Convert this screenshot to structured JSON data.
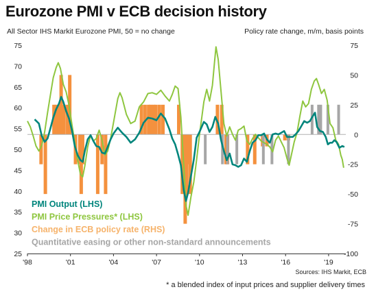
{
  "title": "Eurozone PMI v ECB decision history",
  "subtitle_left": "All Sector IHS Markit Eurozone PMI, 50 = no change",
  "subtitle_right": "Policy rate change, m/m, basis points",
  "source": "Sources: IHS Markit, ECB",
  "footnote": "* a blended index of input prices and supplier delivery times",
  "colors": {
    "pmi_output": "#00857c",
    "pmi_prices": "#8ec63f",
    "rate_change": "#f4913e",
    "qe": "#a6a6a6",
    "legend_rate": "#f6b36b"
  },
  "chart_data": {
    "type": "line",
    "left_axis": {
      "ticks": [
        25,
        30,
        35,
        40,
        45,
        50,
        55,
        60,
        65,
        70,
        75
      ],
      "ylim": [
        25,
        75
      ]
    },
    "right_axis": {
      "ticks": [
        -100,
        -75,
        -50,
        -25,
        0,
        25,
        50,
        75
      ],
      "ylim": [
        -100,
        75
      ]
    },
    "x_axis": {
      "ticks": [
        "'98",
        "'01",
        "'04",
        "'07",
        "'10",
        "'13",
        "'16",
        "'19"
      ],
      "tick_years": [
        1998,
        2001,
        2004,
        2007,
        2010,
        2013,
        2016,
        2019
      ],
      "xlim": [
        1998,
        2020.2
      ]
    },
    "legend": [
      {
        "label": "PMI  Output (LHS)",
        "series": "pmi_output"
      },
      {
        "label": "PMI Price Pressures* (LHS)",
        "series": "pmi_prices"
      },
      {
        "label": "Change in ECB policy rate (RHS)",
        "series": "rate_change"
      },
      {
        "label": "Quantitative easing or other non-standard announcements",
        "series": "qe"
      }
    ],
    "series": [
      {
        "name": "PMI  Output (LHS)",
        "axis": "left",
        "color": "#00857c",
        "points": [
          [
            1998.5,
            57.2
          ],
          [
            1998.8,
            56.2
          ],
          [
            1999.0,
            53.2
          ],
          [
            1999.2,
            51.8
          ],
          [
            1999.4,
            52.6
          ],
          [
            1999.6,
            55.0
          ],
          [
            1999.8,
            57.6
          ],
          [
            2000.0,
            59.6
          ],
          [
            2000.2,
            61.0
          ],
          [
            2000.35,
            62.6
          ],
          [
            2000.5,
            61.4
          ],
          [
            2000.7,
            59.2
          ],
          [
            2000.9,
            57.4
          ],
          [
            2001.1,
            54.6
          ],
          [
            2001.3,
            50.8
          ],
          [
            2001.5,
            48.6
          ],
          [
            2001.7,
            47.4
          ],
          [
            2001.85,
            47.0
          ],
          [
            2002.0,
            49.6
          ],
          [
            2002.2,
            52.4
          ],
          [
            2002.4,
            53.4
          ],
          [
            2002.6,
            52.0
          ],
          [
            2002.8,
            50.8
          ],
          [
            2003.0,
            50.6
          ],
          [
            2003.2,
            49.2
          ],
          [
            2003.4,
            49.0
          ],
          [
            2003.6,
            50.6
          ],
          [
            2003.8,
            52.4
          ],
          [
            2004.0,
            53.8
          ],
          [
            2004.3,
            55.2
          ],
          [
            2004.6,
            54.0
          ],
          [
            2004.9,
            53.0
          ],
          [
            2005.2,
            51.6
          ],
          [
            2005.5,
            52.4
          ],
          [
            2005.8,
            54.0
          ],
          [
            2006.1,
            56.4
          ],
          [
            2006.4,
            57.6
          ],
          [
            2006.7,
            57.4
          ],
          [
            2007.0,
            57.0
          ],
          [
            2007.3,
            58.6
          ],
          [
            2007.6,
            57.4
          ],
          [
            2007.9,
            54.8
          ],
          [
            2008.1,
            52.6
          ],
          [
            2008.3,
            51.2
          ],
          [
            2008.5,
            48.8
          ],
          [
            2008.7,
            46.2
          ],
          [
            2008.9,
            40.2
          ],
          [
            2009.05,
            37.6
          ],
          [
            2009.2,
            39.6
          ],
          [
            2009.4,
            43.6
          ],
          [
            2009.6,
            47.6
          ],
          [
            2009.8,
            52.8
          ],
          [
            2010.0,
            54.2
          ],
          [
            2010.3,
            56.6
          ],
          [
            2010.5,
            56.0
          ],
          [
            2010.7,
            54.2
          ],
          [
            2010.9,
            55.4
          ],
          [
            2011.1,
            57.8
          ],
          [
            2011.3,
            56.2
          ],
          [
            2011.5,
            52.2
          ],
          [
            2011.7,
            49.6
          ],
          [
            2011.9,
            47.4
          ],
          [
            2012.1,
            49.0
          ],
          [
            2012.3,
            46.4
          ],
          [
            2012.5,
            46.2
          ],
          [
            2012.7,
            45.8
          ],
          [
            2012.9,
            46.2
          ],
          [
            2013.1,
            47.8
          ],
          [
            2013.3,
            47.0
          ],
          [
            2013.5,
            49.6
          ],
          [
            2013.7,
            51.6
          ],
          [
            2013.9,
            52.2
          ],
          [
            2014.1,
            53.4
          ],
          [
            2014.3,
            53.4
          ],
          [
            2014.5,
            53.8
          ],
          [
            2014.7,
            52.4
          ],
          [
            2014.9,
            51.6
          ],
          [
            2015.1,
            53.6
          ],
          [
            2015.3,
            53.8
          ],
          [
            2015.5,
            53.6
          ],
          [
            2015.7,
            54.0
          ],
          [
            2015.9,
            54.4
          ],
          [
            2016.1,
            53.0
          ],
          [
            2016.3,
            53.0
          ],
          [
            2016.5,
            53.0
          ],
          [
            2016.7,
            53.6
          ],
          [
            2016.9,
            54.4
          ],
          [
            2017.1,
            55.6
          ],
          [
            2017.3,
            56.8
          ],
          [
            2017.5,
            56.4
          ],
          [
            2017.7,
            56.8
          ],
          [
            2017.9,
            58.0
          ],
          [
            2018.05,
            58.8
          ],
          [
            2018.2,
            55.4
          ],
          [
            2018.4,
            54.4
          ],
          [
            2018.6,
            54.2
          ],
          [
            2018.8,
            53.0
          ],
          [
            2018.95,
            51.2
          ],
          [
            2019.1,
            51.6
          ],
          [
            2019.25,
            51.6
          ],
          [
            2019.4,
            52.2
          ],
          [
            2019.55,
            51.8
          ],
          [
            2019.75,
            50.4
          ],
          [
            2019.95,
            50.8
          ],
          [
            2020.1,
            50.6
          ]
        ]
      },
      {
        "name": "PMI Price Pressures* (LHS)",
        "axis": "left",
        "color": "#8ec63f",
        "points": [
          [
            1998.0,
            56.8
          ],
          [
            1998.2,
            55.4
          ],
          [
            1998.4,
            53.2
          ],
          [
            1998.6,
            50.8
          ],
          [
            1998.8,
            49.6
          ],
          [
            1999.0,
            51.0
          ],
          [
            1999.2,
            54.2
          ],
          [
            1999.4,
            58.8
          ],
          [
            1999.6,
            63.0
          ],
          [
            1999.8,
            67.2
          ],
          [
            2000.0,
            69.6
          ],
          [
            2000.15,
            70.8
          ],
          [
            2000.3,
            69.4
          ],
          [
            2000.5,
            65.6
          ],
          [
            2000.7,
            63.8
          ],
          [
            2000.9,
            60.6
          ],
          [
            2001.1,
            56.0
          ],
          [
            2001.3,
            51.6
          ],
          [
            2001.5,
            47.4
          ],
          [
            2001.7,
            44.0
          ],
          [
            2001.85,
            43.4
          ],
          [
            2002.0,
            46.0
          ],
          [
            2002.2,
            50.6
          ],
          [
            2002.4,
            53.4
          ],
          [
            2002.6,
            52.0
          ],
          [
            2002.8,
            52.6
          ],
          [
            2003.0,
            54.6
          ],
          [
            2003.2,
            52.2
          ],
          [
            2003.4,
            48.6
          ],
          [
            2003.6,
            49.6
          ],
          [
            2003.8,
            52.6
          ],
          [
            2004.0,
            56.4
          ],
          [
            2004.3,
            62.2
          ],
          [
            2004.45,
            63.6
          ],
          [
            2004.6,
            62.4
          ],
          [
            2004.9,
            58.4
          ],
          [
            2005.2,
            56.2
          ],
          [
            2005.5,
            56.8
          ],
          [
            2005.8,
            60.2
          ],
          [
            2006.1,
            61.4
          ],
          [
            2006.4,
            63.4
          ],
          [
            2006.7,
            63.6
          ],
          [
            2007.0,
            63.2
          ],
          [
            2007.3,
            64.2
          ],
          [
            2007.6,
            62.8
          ],
          [
            2007.9,
            61.6
          ],
          [
            2008.1,
            63.2
          ],
          [
            2008.3,
            65.2
          ],
          [
            2008.5,
            64.6
          ],
          [
            2008.7,
            57.8
          ],
          [
            2008.9,
            46.2
          ],
          [
            2009.05,
            36.6
          ],
          [
            2009.2,
            34.2
          ],
          [
            2009.4,
            38.6
          ],
          [
            2009.6,
            42.2
          ],
          [
            2009.8,
            47.6
          ],
          [
            2010.0,
            53.6
          ],
          [
            2010.3,
            61.4
          ],
          [
            2010.5,
            64.4
          ],
          [
            2010.7,
            61.6
          ],
          [
            2010.9,
            65.4
          ],
          [
            2011.05,
            71.2
          ],
          [
            2011.15,
            74.6
          ],
          [
            2011.3,
            71.6
          ],
          [
            2011.5,
            63.8
          ],
          [
            2011.7,
            56.2
          ],
          [
            2011.9,
            53.2
          ],
          [
            2012.1,
            55.4
          ],
          [
            2012.3,
            53.6
          ],
          [
            2012.5,
            52.2
          ],
          [
            2012.7,
            54.6
          ],
          [
            2012.9,
            55.0
          ],
          [
            2013.1,
            55.6
          ],
          [
            2013.3,
            52.0
          ],
          [
            2013.5,
            51.2
          ],
          [
            2013.7,
            52.6
          ],
          [
            2013.9,
            53.6
          ],
          [
            2014.1,
            52.8
          ],
          [
            2014.3,
            52.0
          ],
          [
            2014.5,
            51.6
          ],
          [
            2014.7,
            51.2
          ],
          [
            2014.9,
            50.6
          ],
          [
            2015.1,
            49.4
          ],
          [
            2015.3,
            52.2
          ],
          [
            2015.5,
            53.2
          ],
          [
            2015.7,
            51.8
          ],
          [
            2015.9,
            50.4
          ],
          [
            2016.1,
            47.8
          ],
          [
            2016.25,
            46.2
          ],
          [
            2016.4,
            48.6
          ],
          [
            2016.6,
            51.8
          ],
          [
            2016.8,
            54.0
          ],
          [
            2017.0,
            58.0
          ],
          [
            2017.2,
            61.6
          ],
          [
            2017.4,
            60.2
          ],
          [
            2017.6,
            61.0
          ],
          [
            2017.8,
            64.4
          ],
          [
            2018.0,
            66.4
          ],
          [
            2018.15,
            67.0
          ],
          [
            2018.3,
            65.6
          ],
          [
            2018.5,
            63.4
          ],
          [
            2018.7,
            64.4
          ],
          [
            2018.9,
            61.8
          ],
          [
            2019.1,
            56.2
          ],
          [
            2019.3,
            55.2
          ],
          [
            2019.5,
            52.2
          ],
          [
            2019.7,
            51.2
          ],
          [
            2019.85,
            48.6
          ],
          [
            2019.95,
            47.6
          ],
          [
            2020.05,
            45.6
          ]
        ]
      },
      {
        "name": "Change in ECB policy rate (RHS)",
        "type": "bar",
        "axis": "right",
        "color": "#f4913e",
        "points": [
          [
            1998.95,
            -25
          ],
          [
            1999.25,
            -50
          ],
          [
            1999.85,
            25
          ],
          [
            2000.0,
            25
          ],
          [
            2000.2,
            25
          ],
          [
            2000.35,
            50
          ],
          [
            2000.55,
            25
          ],
          [
            2000.8,
            25
          ],
          [
            2000.95,
            50
          ],
          [
            2001.35,
            -25
          ],
          [
            2001.65,
            -25
          ],
          [
            2001.75,
            -50
          ],
          [
            2001.85,
            -25
          ],
          [
            2002.9,
            -50
          ],
          [
            2003.2,
            -25
          ],
          [
            2003.45,
            -50
          ],
          [
            2005.95,
            25
          ],
          [
            2006.2,
            25
          ],
          [
            2006.45,
            25
          ],
          [
            2006.6,
            25
          ],
          [
            2006.8,
            25
          ],
          [
            2006.95,
            25
          ],
          [
            2007.2,
            25
          ],
          [
            2007.45,
            25
          ],
          [
            2008.55,
            25
          ],
          [
            2008.8,
            -50
          ],
          [
            2008.9,
            -50
          ],
          [
            2009.0,
            -75
          ],
          [
            2009.1,
            -50
          ],
          [
            2009.25,
            -25
          ],
          [
            2009.35,
            -50
          ],
          [
            2011.25,
            25
          ],
          [
            2011.55,
            25
          ],
          [
            2011.85,
            -25
          ],
          [
            2011.95,
            -25
          ],
          [
            2013.35,
            -25
          ],
          [
            2013.85,
            -25
          ],
          [
            2014.4,
            -10
          ],
          [
            2014.7,
            -10
          ],
          [
            2015.95,
            -5
          ],
          [
            2016.2,
            -5
          ]
        ]
      },
      {
        "name": "Quantitative easing or other non-standard announcements",
        "type": "bar",
        "axis": "right",
        "color": "#a6a6a6",
        "points": [
          [
            2010.4,
            -25
          ],
          [
            2011.6,
            -25
          ],
          [
            2011.95,
            -25
          ],
          [
            2012.6,
            -25
          ],
          [
            2014.45,
            -25
          ],
          [
            2015.05,
            -25
          ],
          [
            2016.2,
            -25
          ],
          [
            2017.85,
            25
          ],
          [
            2018.3,
            25
          ],
          [
            2018.45,
            25
          ],
          [
            2018.95,
            25
          ],
          [
            2019.7,
            25
          ]
        ]
      }
    ]
  }
}
